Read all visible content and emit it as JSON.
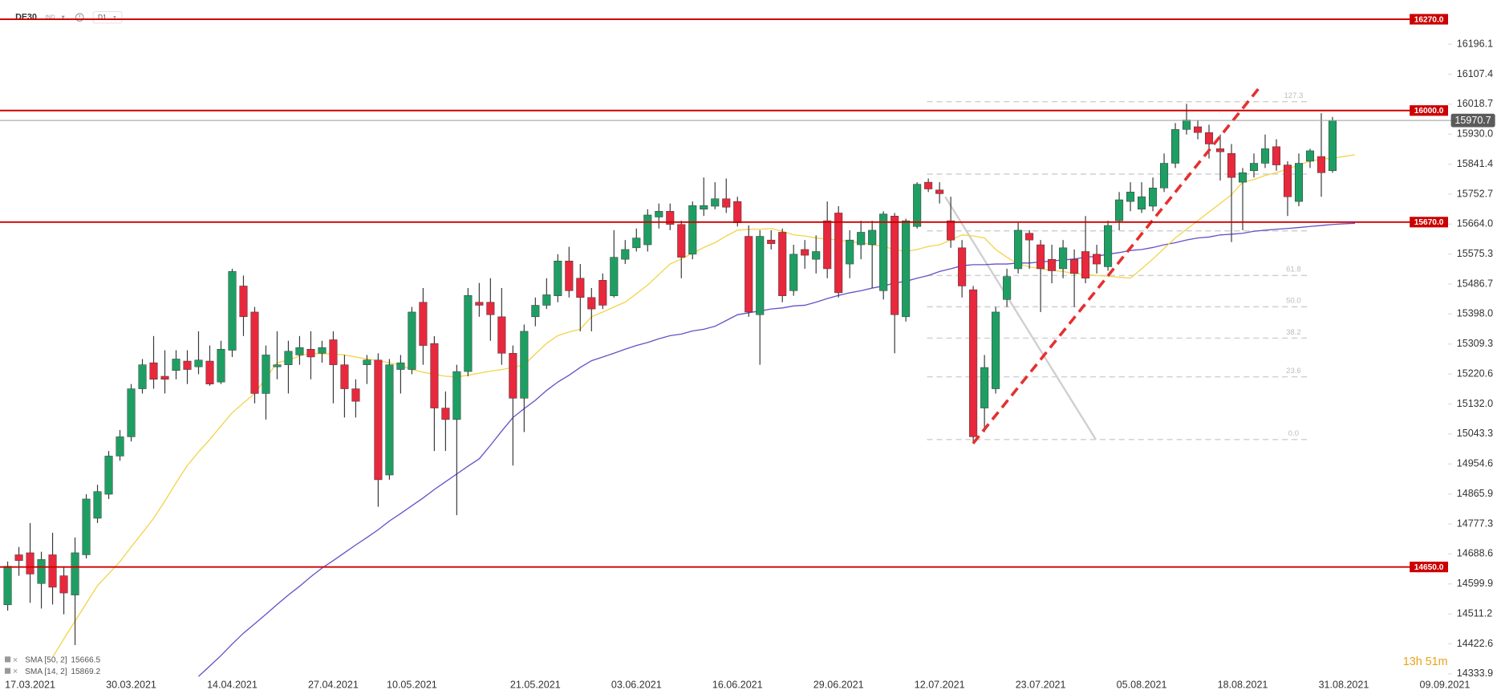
{
  "chart_data": {
    "type": "candlestick",
    "title": "DE30",
    "instrument_type": "IND",
    "interval": "D1",
    "countdown": "13h 51m",
    "categories": [
      null,
      null,
      "17.03.2021",
      null,
      null,
      null,
      null,
      null,
      null,
      null,
      null,
      "30.03.2021",
      null,
      null,
      null,
      null,
      null,
      null,
      null,
      null,
      "14.04.2021",
      null,
      null,
      null,
      null,
      null,
      null,
      null,
      null,
      "27.04.2021",
      null,
      null,
      null,
      null,
      null,
      null,
      "10.05.2021",
      null,
      null,
      null,
      null,
      null,
      null,
      null,
      null,
      null,
      null,
      "21.05.2021",
      null,
      null,
      null,
      null,
      null,
      null,
      null,
      null,
      "03.06.2021",
      null,
      null,
      null,
      null,
      null,
      null,
      null,
      null,
      "16.06.2021",
      null,
      null,
      null,
      null,
      null,
      null,
      null,
      null,
      "29.06.2021",
      null,
      null,
      null,
      null,
      null,
      null,
      null,
      null,
      "12.07.2021",
      null,
      null,
      null,
      null,
      null,
      null,
      null,
      null,
      "23.07.2021",
      null,
      null,
      null,
      null,
      null,
      null,
      null,
      null,
      "05.08.2021",
      null,
      null,
      null,
      null,
      null,
      null,
      null,
      null,
      "18.08.2021",
      null,
      null,
      null,
      null,
      null,
      null,
      null,
      null,
      "31.08.2021",
      null,
      null,
      null,
      null,
      null,
      null,
      null,
      null,
      "09.09.2021"
    ],
    "open": [
      14538,
      14686,
      14692,
      14601,
      14686,
      14624,
      14567,
      14686,
      14794,
      14865,
      14978,
      15035,
      15177,
      15254,
      15214,
      15231,
      15259,
      15242,
      15259,
      15197,
      15291,
      15481,
      15404,
      15163,
      15242,
      15248,
      15277,
      15294,
      15282,
      15322,
      15248,
      15177,
      15248,
      15262,
      14922,
      15234,
      15234,
      15433,
      15311,
      15120,
      15086,
      15228,
      15433,
      15433,
      15390,
      15282,
      15149,
      15390,
      15424,
      15452,
      15555,
      15504,
      15447,
      15498,
      15452,
      15560,
      15594,
      15603,
      15685,
      15702,
      15663,
      15575,
      15708,
      15717,
      15739,
      15731,
      15628,
      15396,
      15617,
      15640,
      15467,
      15589,
      15560,
      15674,
      15697,
      15546,
      15603,
      15603,
      15467,
      15688,
      15390,
      15657,
      15788,
      15765,
      15674,
      15594,
      15470,
      15120,
      15177,
      15441,
      15532,
      15637,
      15603,
      15560,
      15532,
      15560,
      15583,
      15575,
      15538,
      15674,
      15731,
      15708,
      15717,
      15771,
      15844,
      15944,
      15952,
      15935,
      15887,
      15873,
      15788,
      15822,
      15844,
      15893,
      15839,
      15731,
      15850,
      15864,
      15822,
      null,
      null,
      null,
      null,
      null,
      null,
      null,
      null,
      null,
      null
    ],
    "high": [
      14666,
      14709,
      14780,
      14695,
      14751,
      14652,
      14737,
      14865,
      14893,
      14993,
      15055,
      15191,
      15265,
      15333,
      15291,
      15291,
      15291,
      15347,
      15305,
      15319,
      15532,
      15512,
      15419,
      15305,
      15347,
      15319,
      15333,
      15347,
      15319,
      15347,
      15277,
      15205,
      15277,
      15282,
      15265,
      15277,
      15419,
      15475,
      15333,
      15169,
      15248,
      15475,
      15490,
      15504,
      15475,
      15305,
      15367,
      15447,
      15504,
      15575,
      15597,
      15546,
      15475,
      15518,
      15646,
      15617,
      15651,
      15708,
      15725,
      15725,
      15674,
      15731,
      15802,
      15788,
      15799,
      15745,
      15660,
      15646,
      15646,
      15651,
      15603,
      15617,
      15631,
      15731,
      15717,
      15646,
      15674,
      15674,
      15702,
      15697,
      15680,
      15788,
      15799,
      15788,
      15745,
      15617,
      15481,
      15277,
      15419,
      15532,
      15668,
      15646,
      15617,
      15603,
      15617,
      15589,
      15688,
      15603,
      15674,
      15759,
      15788,
      15788,
      15802,
      15873,
      15963,
      16020,
      15972,
      15958,
      15929,
      15901,
      15830,
      15873,
      15929,
      15915,
      15850,
      15873,
      15887,
      15992,
      15981,
      null,
      null,
      null,
      null,
      null,
      null,
      null,
      null,
      null,
      null
    ],
    "low": [
      14521,
      14624,
      14544,
      14527,
      14539,
      14510,
      14419,
      14675,
      14780,
      14851,
      14964,
      15021,
      15163,
      15177,
      15163,
      15205,
      15191,
      15220,
      15186,
      15191,
      15271,
      15333,
      15134,
      15086,
      15205,
      15163,
      15248,
      15205,
      15254,
      15134,
      15092,
      15092,
      15191,
      14828,
      14908,
      15163,
      15220,
      15248,
      14993,
      14993,
      14803,
      15214,
      15390,
      15319,
      15248,
      14950,
      15049,
      15362,
      15413,
      15433,
      15447,
      15347,
      15347,
      15413,
      15447,
      15546,
      15583,
      15583,
      15651,
      15646,
      15504,
      15560,
      15688,
      15708,
      15697,
      15657,
      15390,
      15248,
      15589,
      15433,
      15452,
      15532,
      15518,
      15504,
      15447,
      15504,
      15560,
      15475,
      15441,
      15282,
      15376,
      15651,
      15759,
      15725,
      15594,
      15447,
      15021,
      15049,
      15163,
      15419,
      15518,
      15532,
      15404,
      15489,
      15504,
      15419,
      15489,
      15518,
      15526,
      15646,
      15702,
      15697,
      15702,
      15759,
      15830,
      15929,
      15915,
      15858,
      15793,
      15611,
      15646,
      15802,
      15830,
      15822,
      15688,
      15717,
      15830,
      15745,
      15816,
      null,
      null,
      null,
      null,
      null,
      null,
      null,
      null,
      null,
      null
    ],
    "close": [
      14652,
      14669,
      14629,
      14672,
      14590,
      14573,
      14692,
      14851,
      14873,
      14978,
      15035,
      15177,
      15248,
      15205,
      15205,
      15265,
      15234,
      15262,
      15191,
      15294,
      15524,
      15390,
      15163,
      15277,
      15248,
      15288,
      15299,
      15271,
      15299,
      15248,
      15177,
      15140,
      15262,
      14908,
      15248,
      15254,
      15404,
      15305,
      15120,
      15086,
      15228,
      15453,
      15424,
      15396,
      15282,
      15149,
      15347,
      15424,
      15455,
      15555,
      15467,
      15447,
      15413,
      15424,
      15566,
      15589,
      15623,
      15691,
      15702,
      15663,
      15566,
      15719,
      15719,
      15739,
      15714,
      15668,
      15404,
      15628,
      15606,
      15452,
      15575,
      15572,
      15583,
      15532,
      15461,
      15617,
      15640,
      15646,
      15694,
      15396,
      15674,
      15782,
      15768,
      15754,
      15617,
      15481,
      15035,
      15240,
      15404,
      15509,
      15646,
      15617,
      15532,
      15526,
      15594,
      15518,
      15504,
      15546,
      15660,
      15736,
      15759,
      15745,
      15771,
      15844,
      15944,
      15972,
      15935,
      15901,
      15878,
      15802,
      15816,
      15844,
      15887,
      15839,
      15745,
      15844,
      15881,
      15816,
      15970.7,
      null,
      null,
      null,
      null,
      null,
      null,
      null,
      null,
      null,
      null
    ],
    "up_color": "#1f9e63",
    "down_color": "#e8283c",
    "wick_color": "#3a3a3a",
    "ylim": [
      14322.7,
      16326.7
    ],
    "yticks": [
      16196.1,
      16107.4,
      16018.7,
      {
        "value": 15930,
        "label": "15930.0"
      },
      15841.4,
      15752.7,
      {
        "value": 15664,
        "label": "15664.0"
      },
      15575.3,
      15486.7,
      {
        "value": 15398,
        "label": "15398.0"
      },
      15309.3,
      15220.6,
      {
        "value": 15132,
        "label": "15132.0"
      },
      15043.3,
      14954.6,
      14865.9,
      14777.3,
      14688.6,
      14599.9,
      14511.2,
      14422.6,
      14333.9
    ],
    "levels": [
      {
        "value": 16270,
        "label": "16270.0"
      },
      {
        "value": 16000,
        "label": "16000.0"
      },
      {
        "value": 15670,
        "label": "15670.0"
      },
      {
        "value": 14650,
        "label": "14650.0"
      }
    ],
    "level_color": "#cc0000",
    "last_price": {
      "value": 15970.7,
      "label": "15970.7"
    },
    "fib": {
      "low": 15027,
      "high": 15812,
      "levels": [
        127.3,
        {
          "value": 50,
          "label": "50.0"
        },
        61.8,
        38.2,
        23.6,
        {
          "value": 0,
          "label": "0.0"
        }
      ],
      "unlabeled_levels": [
        100,
        78.6
      ]
    },
    "overlays": [
      {
        "name": "SMA [50, 2]",
        "color": "#6650c8",
        "last": 15666.5,
        "values": [
          null,
          null,
          null,
          null,
          null,
          null,
          null,
          null,
          null,
          null,
          null,
          null,
          null,
          null,
          null,
          null,
          null,
          14326,
          14357,
          14388,
          14422,
          14454,
          14482,
          14510,
          14539,
          14567,
          14593,
          14621,
          14647,
          14669,
          14692,
          14715,
          14737,
          14760,
          14786,
          14808,
          14831,
          14854,
          14879,
          14902,
          14925,
          14948,
          14970,
          15010,
          15052,
          15092,
          15118,
          15143,
          15172,
          15197,
          15217,
          15240,
          15260,
          15271,
          15282,
          15294,
          15305,
          15314,
          15325,
          15334,
          15339,
          15348,
          15353,
          15362,
          15379,
          15396,
          15402,
          15407,
          15413,
          15416,
          15422,
          15424,
          15433,
          15444,
          15453,
          15461,
          15467,
          15475,
          15481,
          15490,
          15495,
          15504,
          15512,
          15524,
          15532,
          15541,
          15544,
          15544,
          15546,
          15546,
          15549,
          15549,
          15552,
          15555,
          15558,
          15561,
          15566,
          15569,
          15575,
          15580,
          15586,
          15589,
          15595,
          15603,
          15609,
          15617,
          15623,
          15626,
          15632,
          15634,
          15637,
          15643,
          15646,
          15649,
          15651,
          15654,
          15657,
          15660,
          15663,
          15665,
          15666.5,
          null,
          null,
          null,
          null,
          null,
          null,
          null,
          null
        ]
      },
      {
        "name": "SMA [14, 2]",
        "color": "#f2d44a",
        "last": 15869.2,
        "values": [
          null,
          null,
          null,
          null,
          14383,
          14437,
          14490,
          14542,
          14595,
          14630,
          14666,
          14709,
          14751,
          14794,
          14845,
          14899,
          14950,
          14990,
          15027,
          15067,
          15106,
          15135,
          15163,
          15209,
          15254,
          15262,
          15274,
          15282,
          15280,
          15280,
          15277,
          15271,
          15265,
          15260,
          15254,
          15246,
          15234,
          15226,
          15220,
          15214,
          15212,
          15217,
          15223,
          15229,
          15234,
          15240,
          15248,
          15280,
          15311,
          15334,
          15345,
          15353,
          15390,
          15404,
          15419,
          15433,
          15458,
          15484,
          15515,
          15546,
          15561,
          15578,
          15595,
          15609,
          15629,
          15646,
          15649,
          15649,
          15651,
          15643,
          15632,
          15629,
          15623,
          15620,
          15617,
          15612,
          15609,
          15603,
          15598,
          15589,
          15583,
          15589,
          15598,
          15603,
          15617,
          15632,
          15629,
          15623,
          15589,
          15566,
          15546,
          15538,
          15532,
          15527,
          15524,
          15518,
          15515,
          15512,
          15510,
          15507,
          15504,
          15532,
          15561,
          15592,
          15623,
          15649,
          15674,
          15700,
          15725,
          15751,
          15788,
          15796,
          15808,
          15816,
          15827,
          15839,
          15850,
          15856,
          15859,
          15864,
          15869.2,
          null,
          null,
          null,
          null,
          null,
          null,
          null,
          null
        ]
      }
    ]
  }
}
